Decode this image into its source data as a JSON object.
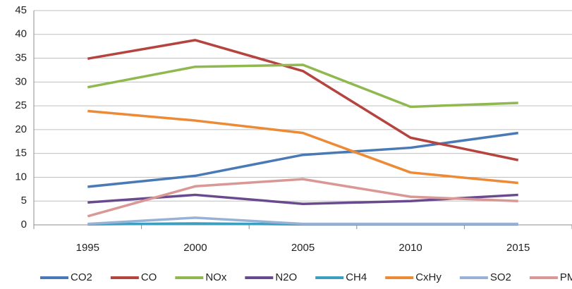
{
  "chart_data": {
    "type": "line",
    "categories": [
      "1995",
      "2000",
      "2005",
      "2010",
      "2015"
    ],
    "series": [
      {
        "name": "CO2",
        "color": "#4a7ab5",
        "values": [
          8.0,
          10.3,
          14.7,
          16.2,
          19.3
        ]
      },
      {
        "name": "CO",
        "color": "#b5443f",
        "values": [
          34.9,
          38.8,
          32.3,
          18.3,
          13.6
        ]
      },
      {
        "name": "NOx",
        "color": "#8fb84f",
        "values": [
          28.9,
          33.2,
          33.6,
          24.8,
          25.6
        ]
      },
      {
        "name": "N2O",
        "color": "#6a4a8e",
        "values": [
          4.7,
          6.3,
          4.4,
          5.0,
          6.3
        ]
      },
      {
        "name": "CH4",
        "color": "#3d9fbf",
        "values": [
          0.1,
          0.3,
          0.1,
          0.1,
          0.1
        ]
      },
      {
        "name": "CxHy",
        "color": "#ec8a36",
        "values": [
          23.9,
          21.9,
          19.3,
          11.0,
          8.8
        ]
      },
      {
        "name": "SO2",
        "color": "#98b1d6",
        "values": [
          0.2,
          1.5,
          0.2,
          0.2,
          0.2
        ]
      },
      {
        "name": "PM",
        "color": "#d99795",
        "values": [
          1.8,
          8.1,
          9.6,
          5.9,
          5.0
        ]
      }
    ],
    "ylim": [
      0,
      45
    ],
    "yticks": [
      0,
      5,
      10,
      15,
      20,
      25,
      30,
      35,
      40,
      45
    ],
    "grid": true,
    "legend": "bottom"
  }
}
